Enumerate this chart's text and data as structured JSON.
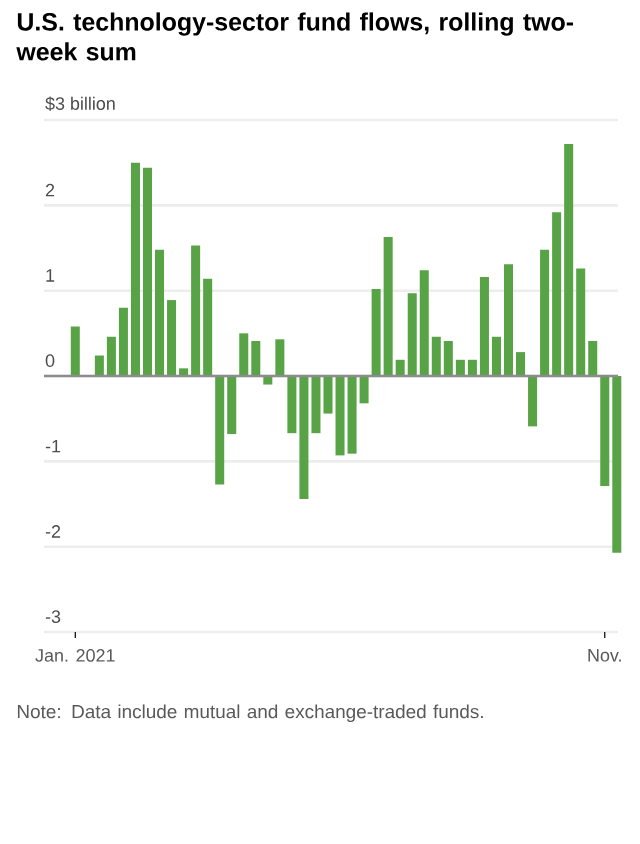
{
  "chart_data": {
    "type": "bar",
    "title": "U.S. technology-sector fund flows, rolling two-week sum",
    "annotations": [
      "Note: Data include mutual and exchange-traded funds."
    ],
    "categories": [
      "Jan. 2021",
      null,
      null,
      null,
      null,
      null,
      null,
      null,
      null,
      null,
      null,
      null,
      null,
      null,
      null,
      null,
      null,
      null,
      null,
      null,
      null,
      null,
      null,
      null,
      null,
      null,
      null,
      null,
      null,
      null,
      null,
      null,
      null,
      null,
      null,
      null,
      null,
      null,
      null,
      null,
      null,
      null,
      null,
      null,
      "Nov.",
      null
    ],
    "values": [
      0.58,
      0,
      0.24,
      0.46,
      0.8,
      2.5,
      2.44,
      1.48,
      0.89,
      0.09,
      1.53,
      1.14,
      -1.27,
      -0.68,
      0.5,
      0.41,
      -0.1,
      0.43,
      -0.67,
      -1.44,
      -0.67,
      -0.44,
      -0.93,
      -0.91,
      -0.32,
      1.02,
      1.63,
      0.19,
      0.97,
      1.24,
      0.46,
      0.41,
      0.19,
      0.19,
      1.16,
      0.46,
      1.31,
      0.28,
      -0.59,
      1.48,
      1.92,
      2.72,
      1.26,
      0.41,
      -1.29,
      -2.07
    ],
    "color": "#57a346",
    "ylim": [
      -3,
      3
    ],
    "yticks": [
      {
        "value": 3,
        "label": "$3 billion"
      },
      2,
      1,
      0,
      -1,
      -2,
      -3
    ],
    "grid": "y",
    "ref_lines": [
      {
        "axis": "y",
        "value": 0,
        "color": "#8c8c8c"
      }
    ]
  }
}
